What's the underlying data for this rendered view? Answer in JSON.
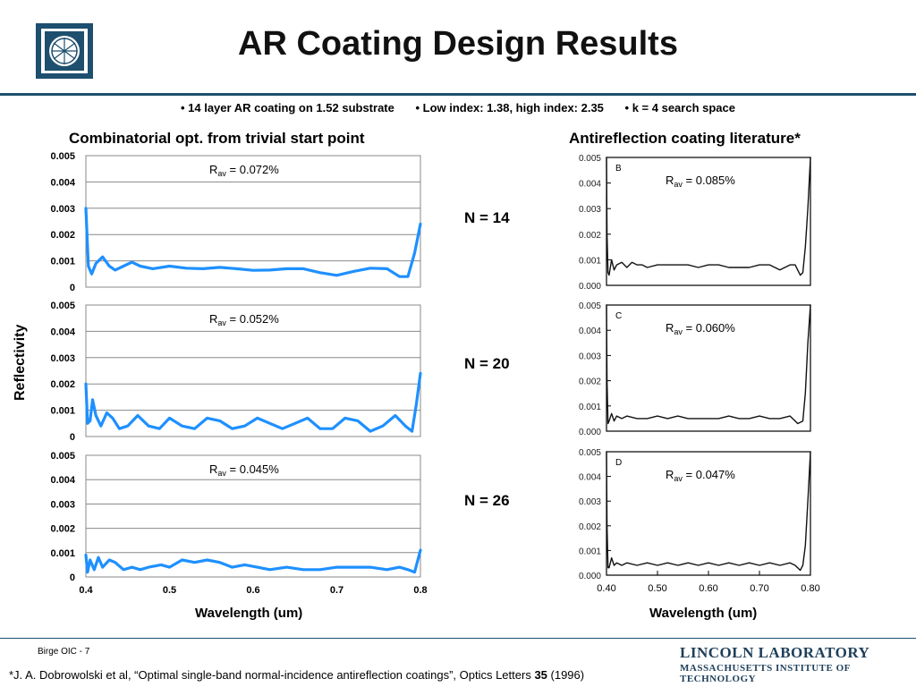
{
  "header": {
    "title": "AR Coating Design Results",
    "bullets": [
      "• 14 layer AR coating on 1.52 substrate",
      "• Low index: 1.38, high index: 2.35",
      "• k = 4 search space"
    ]
  },
  "colors": {
    "accent": "#1e4f6e",
    "curve": "#1e90ff",
    "grid": "#888888"
  },
  "left_column_title": "Combinatorial opt. from trivial start point",
  "right_column_title": "Antireflection coating literature*",
  "y_axis_label": "Reflectivity",
  "x_axis_label_left": "Wavelength (um)",
  "x_axis_label_right": "Wavelength (um)",
  "n_labels": [
    "N = 14",
    "N = 20",
    "N = 26"
  ],
  "chart_data": [
    {
      "type": "line",
      "panel": "left-top",
      "annotation": "R_av = 0.072%",
      "xlim": [
        0.4,
        0.8
      ],
      "ylim": [
        0,
        0.005
      ],
      "yticks": [
        "0",
        "0.001",
        "0.002",
        "0.003",
        "0.004",
        "0.005"
      ],
      "x": [
        0.4,
        0.403,
        0.407,
        0.412,
        0.42,
        0.428,
        0.435,
        0.445,
        0.455,
        0.465,
        0.48,
        0.5,
        0.52,
        0.54,
        0.56,
        0.58,
        0.6,
        0.62,
        0.64,
        0.66,
        0.68,
        0.7,
        0.72,
        0.74,
        0.76,
        0.775,
        0.785,
        0.793,
        0.8
      ],
      "y": [
        0.003,
        0.0008,
        0.0005,
        0.0009,
        0.00115,
        0.0008,
        0.00065,
        0.0008,
        0.00095,
        0.0008,
        0.0007,
        0.0008,
        0.00072,
        0.0007,
        0.00075,
        0.0007,
        0.00064,
        0.00065,
        0.0007,
        0.0007,
        0.00055,
        0.00045,
        0.0006,
        0.00072,
        0.0007,
        0.0004,
        0.0004,
        0.0013,
        0.0024
      ]
    },
    {
      "type": "line",
      "panel": "left-middle",
      "annotation": "R_av = 0.052%",
      "xlim": [
        0.4,
        0.8
      ],
      "ylim": [
        0,
        0.005
      ],
      "yticks": [
        "0",
        "0.001",
        "0.002",
        "0.003",
        "0.004",
        "0.005"
      ],
      "x": [
        0.4,
        0.402,
        0.405,
        0.408,
        0.412,
        0.418,
        0.425,
        0.432,
        0.44,
        0.45,
        0.462,
        0.475,
        0.488,
        0.5,
        0.515,
        0.53,
        0.545,
        0.56,
        0.575,
        0.59,
        0.605,
        0.62,
        0.635,
        0.65,
        0.665,
        0.68,
        0.695,
        0.71,
        0.725,
        0.74,
        0.755,
        0.77,
        0.782,
        0.79,
        0.795,
        0.8
      ],
      "y": [
        0.002,
        0.0005,
        0.0006,
        0.0014,
        0.0008,
        0.0004,
        0.0009,
        0.0007,
        0.0003,
        0.0004,
        0.0008,
        0.0004,
        0.0003,
        0.0007,
        0.0004,
        0.0003,
        0.0007,
        0.0006,
        0.0003,
        0.0004,
        0.0007,
        0.0005,
        0.0003,
        0.0005,
        0.0007,
        0.0003,
        0.0003,
        0.0007,
        0.0006,
        0.0002,
        0.0004,
        0.0008,
        0.0004,
        0.0002,
        0.0012,
        0.0024
      ]
    },
    {
      "type": "line",
      "panel": "left-bottom",
      "annotation": "R_av = 0.045%",
      "xlim": [
        0.4,
        0.8
      ],
      "ylim": [
        0,
        0.005
      ],
      "yticks": [
        "0",
        "0.001",
        "0.002",
        "0.003",
        "0.004",
        "0.005"
      ],
      "xticks": [
        "0.4",
        "0.5",
        "0.6",
        "0.7",
        "0.8"
      ],
      "x": [
        0.4,
        0.402,
        0.405,
        0.41,
        0.415,
        0.42,
        0.428,
        0.435,
        0.445,
        0.455,
        0.465,
        0.475,
        0.49,
        0.5,
        0.515,
        0.53,
        0.545,
        0.56,
        0.575,
        0.59,
        0.605,
        0.62,
        0.64,
        0.66,
        0.68,
        0.7,
        0.72,
        0.74,
        0.76,
        0.775,
        0.785,
        0.793,
        0.8
      ],
      "y": [
        0.0009,
        0.0002,
        0.0007,
        0.0003,
        0.0008,
        0.0004,
        0.0007,
        0.0006,
        0.0003,
        0.0004,
        0.0003,
        0.0004,
        0.0005,
        0.0004,
        0.0007,
        0.0006,
        0.0007,
        0.0006,
        0.0004,
        0.0005,
        0.0004,
        0.0003,
        0.0004,
        0.0003,
        0.0003,
        0.0004,
        0.0004,
        0.0004,
        0.0003,
        0.0004,
        0.0003,
        0.0002,
        0.0011
      ]
    },
    {
      "type": "line",
      "panel": "right-top",
      "panel_letter": "B",
      "annotation": "R_av = 0.085%",
      "xlim": [
        0.4,
        0.8
      ],
      "ylim": [
        0,
        0.005
      ],
      "yticks": [
        "0.000",
        "0.001",
        "0.002",
        "0.003",
        "0.004",
        "0.005"
      ],
      "x": [
        0.4,
        0.401,
        0.403,
        0.405,
        0.41,
        0.415,
        0.42,
        0.43,
        0.44,
        0.45,
        0.46,
        0.47,
        0.48,
        0.5,
        0.52,
        0.54,
        0.56,
        0.58,
        0.6,
        0.62,
        0.64,
        0.66,
        0.68,
        0.7,
        0.72,
        0.74,
        0.76,
        0.77,
        0.78,
        0.785,
        0.79,
        0.795,
        0.8
      ],
      "y": [
        0.005,
        0.002,
        0.0005,
        0.0004,
        0.001,
        0.0006,
        0.0008,
        0.0009,
        0.0007,
        0.0009,
        0.0008,
        0.0008,
        0.0007,
        0.0008,
        0.0008,
        0.0008,
        0.0008,
        0.0007,
        0.0008,
        0.0008,
        0.0007,
        0.0007,
        0.0007,
        0.0008,
        0.0008,
        0.0006,
        0.0008,
        0.0008,
        0.0004,
        0.0005,
        0.0015,
        0.003,
        0.005
      ]
    },
    {
      "type": "line",
      "panel": "right-middle",
      "panel_letter": "C",
      "annotation": "R_av = 0.060%",
      "xlim": [
        0.4,
        0.8
      ],
      "ylim": [
        0,
        0.005
      ],
      "yticks": [
        "0.000",
        "0.001",
        "0.002",
        "0.003",
        "0.004",
        "0.005"
      ],
      "x": [
        0.4,
        0.401,
        0.403,
        0.405,
        0.41,
        0.415,
        0.42,
        0.43,
        0.44,
        0.46,
        0.48,
        0.5,
        0.52,
        0.54,
        0.56,
        0.58,
        0.6,
        0.62,
        0.64,
        0.66,
        0.68,
        0.7,
        0.72,
        0.74,
        0.76,
        0.775,
        0.785,
        0.79,
        0.795,
        0.8
      ],
      "y": [
        0.005,
        0.002,
        0.0003,
        0.0004,
        0.0007,
        0.0004,
        0.0006,
        0.0005,
        0.0006,
        0.0005,
        0.0005,
        0.0006,
        0.0005,
        0.0006,
        0.0005,
        0.0005,
        0.0005,
        0.0005,
        0.0006,
        0.0005,
        0.0005,
        0.0006,
        0.0005,
        0.0005,
        0.0006,
        0.0003,
        0.0004,
        0.0015,
        0.0035,
        0.005
      ]
    },
    {
      "type": "line",
      "panel": "right-bottom",
      "panel_letter": "D",
      "annotation": "R_av = 0.047%",
      "xlim": [
        0.4,
        0.8
      ],
      "ylim": [
        0,
        0.005
      ],
      "yticks": [
        "0.000",
        "0.001",
        "0.002",
        "0.003",
        "0.004",
        "0.005"
      ],
      "xticks": [
        "0.40",
        "0.50",
        "0.60",
        "0.70",
        "0.80"
      ],
      "x": [
        0.4,
        0.401,
        0.403,
        0.405,
        0.41,
        0.415,
        0.42,
        0.43,
        0.44,
        0.46,
        0.48,
        0.5,
        0.52,
        0.54,
        0.56,
        0.58,
        0.6,
        0.62,
        0.64,
        0.66,
        0.68,
        0.7,
        0.72,
        0.74,
        0.76,
        0.77,
        0.78,
        0.785,
        0.79,
        0.795,
        0.8
      ],
      "y": [
        0.005,
        0.002,
        0.0003,
        0.0003,
        0.0007,
        0.0004,
        0.0005,
        0.0004,
        0.0005,
        0.0004,
        0.0005,
        0.0004,
        0.0005,
        0.0004,
        0.0005,
        0.0004,
        0.0005,
        0.0004,
        0.0005,
        0.0004,
        0.0005,
        0.0004,
        0.0005,
        0.0004,
        0.0005,
        0.0004,
        0.0002,
        0.0004,
        0.0012,
        0.003,
        0.005
      ]
    }
  ],
  "footer": {
    "page_id": "Birge OIC - 7",
    "citation_pre": "*J. A. Dobrowolski et al, “Optimal single-band normal-incidence antireflection coatings”, Optics Letters ",
    "citation_volume": "35",
    "citation_post": " (1996)",
    "lab_name": "LINCOLN LABORATORY",
    "institute": "MASSACHUSETTS INSTITUTE OF TECHNOLOGY"
  }
}
